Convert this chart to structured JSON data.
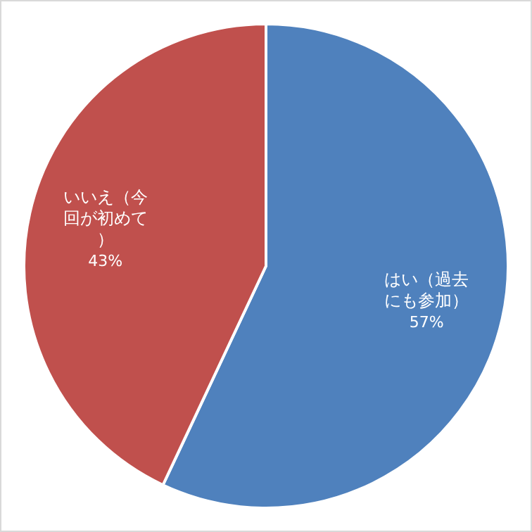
{
  "chart_data": {
    "type": "pie",
    "categories": [
      "はい（過去にも参加）",
      "いいえ（今回が初めて）"
    ],
    "values": [
      57,
      43
    ],
    "colors": [
      "#4f81bd",
      "#c0504d"
    ],
    "value_labels": [
      "57%",
      "43%"
    ]
  }
}
